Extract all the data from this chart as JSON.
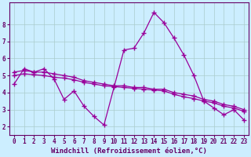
{
  "xlabel": "Windchill (Refroidissement éolien,°C)",
  "xlim": [
    -0.5,
    23.5
  ],
  "ylim": [
    1.5,
    9.3
  ],
  "background_color": "#cceeff",
  "grid_color": "#aacccc",
  "line_color": "#990099",
  "xticks": [
    0,
    1,
    2,
    3,
    4,
    5,
    6,
    7,
    8,
    9,
    10,
    11,
    12,
    13,
    14,
    15,
    16,
    17,
    18,
    19,
    20,
    21,
    22,
    23
  ],
  "yticks": [
    2,
    3,
    4,
    5,
    6,
    7,
    8
  ],
  "series1_x": [
    0,
    1,
    2,
    3,
    4,
    5,
    6,
    7,
    8,
    9,
    10,
    11,
    12,
    13,
    14,
    15,
    16,
    17,
    18,
    19,
    20,
    21,
    22,
    23
  ],
  "series1_y": [
    4.5,
    5.4,
    5.2,
    5.4,
    4.8,
    3.6,
    4.1,
    3.2,
    2.6,
    2.1,
    4.3,
    6.5,
    6.6,
    7.5,
    8.7,
    8.1,
    7.2,
    6.2,
    5.0,
    3.5,
    3.1,
    2.7,
    3.0,
    2.4
  ],
  "series2_x": [
    0,
    1,
    2,
    3,
    4,
    5,
    6,
    7,
    8,
    9,
    10,
    11,
    12,
    13,
    14,
    15,
    16,
    17,
    18,
    19,
    20,
    21,
    22,
    23
  ],
  "series2_y": [
    5.2,
    5.3,
    5.2,
    5.2,
    5.1,
    5.0,
    4.9,
    4.7,
    4.6,
    4.5,
    4.4,
    4.4,
    4.3,
    4.3,
    4.2,
    4.2,
    4.0,
    3.9,
    3.8,
    3.6,
    3.5,
    3.3,
    3.2,
    3.0
  ],
  "series3_x": [
    0,
    1,
    2,
    3,
    4,
    5,
    6,
    7,
    8,
    9,
    10,
    11,
    12,
    13,
    14,
    15,
    16,
    17,
    18,
    19,
    20,
    21,
    22,
    23
  ],
  "series3_y": [
    5.0,
    5.1,
    5.05,
    5.0,
    4.9,
    4.85,
    4.75,
    4.6,
    4.5,
    4.4,
    4.35,
    4.3,
    4.25,
    4.2,
    4.15,
    4.1,
    3.9,
    3.75,
    3.65,
    3.5,
    3.4,
    3.2,
    3.1,
    2.9
  ],
  "marker": "+",
  "markersize": 4,
  "linewidth": 0.9,
  "tick_fontsize": 5.5,
  "label_fontsize": 6.5
}
